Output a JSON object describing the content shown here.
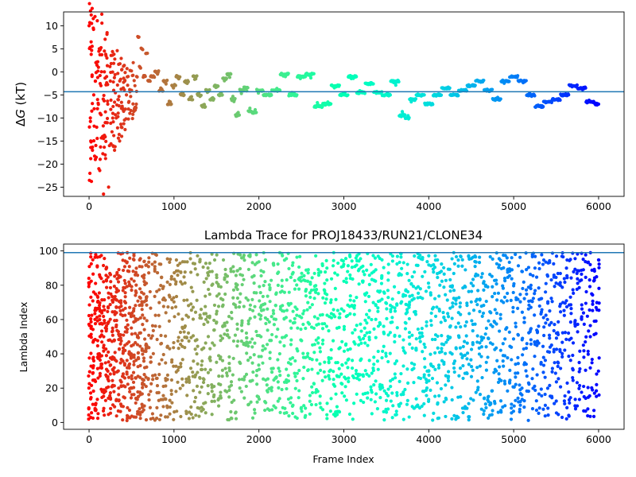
{
  "chart_data": [
    {
      "type": "scatter",
      "title": "",
      "xlabel": "",
      "ylabel": "ΔG (kT)",
      "ylabel_math_symbol": "Δ",
      "ylabel_math_var": "G",
      "ylabel_unit": " (kT)",
      "xlim": [
        -300,
        6300
      ],
      "ylim": [
        -27,
        13
      ],
      "xticks": [
        0,
        1000,
        2000,
        3000,
        4000,
        5000,
        6000
      ],
      "xtick_labels": [
        "0",
        "1000",
        "2000",
        "3000",
        "4000",
        "5000",
        "6000"
      ],
      "yticks": [
        -25,
        -20,
        -15,
        -10,
        -5,
        0,
        5,
        10
      ],
      "ytick_labels": [
        "−25",
        "−20",
        "−15",
        "−10",
        "−5",
        "0",
        "5",
        "10"
      ],
      "hline": -4.3,
      "hline_color": "#1f77b4",
      "colormap": "rainbow_reversed",
      "n_frames": 6000,
      "grid": false,
      "legend": "none",
      "points": [
        {
          "x": 0,
          "y": 10
        },
        {
          "x": 10,
          "y": -22
        },
        {
          "x": 15,
          "y": -10
        },
        {
          "x": 20,
          "y": -15
        },
        {
          "x": 25,
          "y": 3.8
        },
        {
          "x": 30,
          "y": 10.5
        },
        {
          "x": 35,
          "y": -1
        },
        {
          "x": 40,
          "y": -17
        },
        {
          "x": 50,
          "y": 9.5
        },
        {
          "x": 55,
          "y": -5
        },
        {
          "x": 60,
          "y": -8
        },
        {
          "x": 70,
          "y": 12
        },
        {
          "x": 75,
          "y": -2
        },
        {
          "x": 80,
          "y": 2
        },
        {
          "x": 90,
          "y": -12
        },
        {
          "x": 100,
          "y": -6
        },
        {
          "x": 110,
          "y": 1
        },
        {
          "x": 115,
          "y": -21
        },
        {
          "x": 120,
          "y": 5
        },
        {
          "x": 130,
          "y": -9
        },
        {
          "x": 140,
          "y": -3
        },
        {
          "x": 150,
          "y": 12.5
        },
        {
          "x": 160,
          "y": -14
        },
        {
          "x": 170,
          "y": -26.5
        },
        {
          "x": 180,
          "y": 0
        },
        {
          "x": 190,
          "y": -18
        },
        {
          "x": 200,
          "y": -11
        },
        {
          "x": 210,
          "y": 3
        },
        {
          "x": 220,
          "y": -7
        },
        {
          "x": 230,
          "y": -25
        },
        {
          "x": 240,
          "y": -16
        },
        {
          "x": 250,
          "y": -2
        },
        {
          "x": 260,
          "y": 1.8
        },
        {
          "x": 270,
          "y": -13
        },
        {
          "x": 280,
          "y": -9
        },
        {
          "x": 290,
          "y": -4
        },
        {
          "x": 300,
          "y": -17
        },
        {
          "x": 320,
          "y": -10
        },
        {
          "x": 340,
          "y": -6
        },
        {
          "x": 360,
          "y": -15
        },
        {
          "x": 380,
          "y": -12
        },
        {
          "x": 400,
          "y": -8
        },
        {
          "x": 420,
          "y": -2
        },
        {
          "x": 440,
          "y": -5
        },
        {
          "x": 460,
          "y": -1
        },
        {
          "x": 480,
          "y": -9
        },
        {
          "x": 500,
          "y": -4
        },
        {
          "x": 520,
          "y": 2
        },
        {
          "x": 540,
          "y": -3
        },
        {
          "x": 560,
          "y": -1
        },
        {
          "x": 580,
          "y": 7.5
        },
        {
          "x": 600,
          "y": 1
        },
        {
          "x": 620,
          "y": 5
        },
        {
          "x": 650,
          "y": -1
        },
        {
          "x": 680,
          "y": 4
        },
        {
          "x": 700,
          "y": -2
        },
        {
          "x": 750,
          "y": -1
        },
        {
          "x": 800,
          "y": 0
        },
        {
          "x": 850,
          "y": -4
        },
        {
          "x": 900,
          "y": -2
        },
        {
          "x": 950,
          "y": -7
        },
        {
          "x": 1000,
          "y": -3
        },
        {
          "x": 1050,
          "y": -1
        },
        {
          "x": 1100,
          "y": -5
        },
        {
          "x": 1150,
          "y": -2
        },
        {
          "x": 1200,
          "y": -6
        },
        {
          "x": 1250,
          "y": -1
        },
        {
          "x": 1300,
          "y": -5
        },
        {
          "x": 1350,
          "y": -7.5
        },
        {
          "x": 1400,
          "y": -4
        },
        {
          "x": 1450,
          "y": -6
        },
        {
          "x": 1500,
          "y": -3
        },
        {
          "x": 1550,
          "y": -5
        },
        {
          "x": 1600,
          "y": -1.5
        },
        {
          "x": 1650,
          "y": -0.5
        },
        {
          "x": 1700,
          "y": -6
        },
        {
          "x": 1750,
          "y": -9.5
        },
        {
          "x": 1800,
          "y": -4
        },
        {
          "x": 1850,
          "y": -3.5
        },
        {
          "x": 1900,
          "y": -8.5
        },
        {
          "x": 1950,
          "y": -8.8
        },
        {
          "x": 2000,
          "y": -4
        },
        {
          "x": 2100,
          "y": -5
        },
        {
          "x": 2200,
          "y": -4
        },
        {
          "x": 2300,
          "y": -0.5
        },
        {
          "x": 2400,
          "y": -5
        },
        {
          "x": 2500,
          "y": -1
        },
        {
          "x": 2600,
          "y": -0.5
        },
        {
          "x": 2700,
          "y": -7.5
        },
        {
          "x": 2800,
          "y": -7
        },
        {
          "x": 2900,
          "y": -3
        },
        {
          "x": 3000,
          "y": -5
        },
        {
          "x": 3100,
          "y": -1
        },
        {
          "x": 3200,
          "y": -4.5
        },
        {
          "x": 3300,
          "y": -2.5
        },
        {
          "x": 3400,
          "y": -4.5
        },
        {
          "x": 3500,
          "y": -5
        },
        {
          "x": 3600,
          "y": -2
        },
        {
          "x": 3700,
          "y": -9.5
        },
        {
          "x": 3750,
          "y": -10
        },
        {
          "x": 3800,
          "y": -6
        },
        {
          "x": 3900,
          "y": -5
        },
        {
          "x": 4000,
          "y": -7
        },
        {
          "x": 4100,
          "y": -5
        },
        {
          "x": 4200,
          "y": -3.5
        },
        {
          "x": 4300,
          "y": -5
        },
        {
          "x": 4400,
          "y": -4
        },
        {
          "x": 4500,
          "y": -3
        },
        {
          "x": 4600,
          "y": -2
        },
        {
          "x": 4700,
          "y": -4
        },
        {
          "x": 4800,
          "y": -6
        },
        {
          "x": 4900,
          "y": -2
        },
        {
          "x": 5000,
          "y": -1
        },
        {
          "x": 5100,
          "y": -2
        },
        {
          "x": 5200,
          "y": -5
        },
        {
          "x": 5300,
          "y": -7.5
        },
        {
          "x": 5400,
          "y": -6.5
        },
        {
          "x": 5500,
          "y": -6
        },
        {
          "x": 5600,
          "y": -5
        },
        {
          "x": 5700,
          "y": -3
        },
        {
          "x": 5800,
          "y": -3.5
        },
        {
          "x": 5900,
          "y": -6.5
        },
        {
          "x": 6000,
          "y": -7
        }
      ]
    },
    {
      "type": "scatter",
      "title": "Lambda Trace for PROJ18433/RUN21/CLONE34",
      "xlabel": "Frame Index",
      "ylabel": "Lambda Index",
      "xlim": [
        -300,
        6300
      ],
      "ylim": [
        -4,
        104
      ],
      "xticks": [
        0,
        1000,
        2000,
        3000,
        4000,
        5000,
        6000
      ],
      "xtick_labels": [
        "0",
        "1000",
        "2000",
        "3000",
        "4000",
        "5000",
        "6000"
      ],
      "yticks": [
        0,
        20,
        40,
        60,
        80,
        100
      ],
      "ytick_labels": [
        "0",
        "20",
        "40",
        "60",
        "80",
        "100"
      ],
      "hline": 99,
      "hline_color": "#1f77b4",
      "colormap": "rainbow_reversed",
      "n_frames": 6000,
      "grid": false,
      "legend": "none"
    }
  ]
}
